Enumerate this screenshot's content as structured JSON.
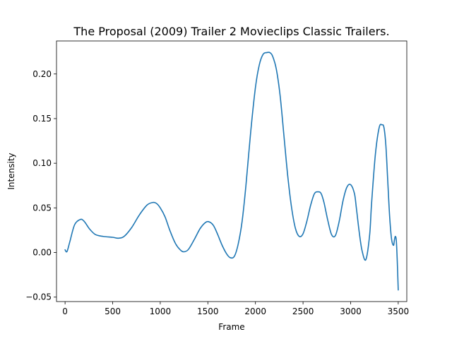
{
  "chart_data": {
    "type": "line",
    "title": "The Proposal (2009) Trailer 2  Movieclips Classic Trailers.",
    "xlabel": "Frame",
    "ylabel": "Intensity",
    "xlim": [
      -90,
      3590
    ],
    "ylim": [
      -0.055,
      0.237
    ],
    "xticks": [
      0,
      500,
      1000,
      1500,
      2000,
      2500,
      3000,
      3500
    ],
    "yticks": [
      -0.05,
      0.0,
      0.05,
      0.1,
      0.15,
      0.2
    ],
    "xtick_labels": [
      "0",
      "500",
      "1000",
      "1500",
      "2000",
      "2500",
      "3000",
      "3500"
    ],
    "ytick_labels": [
      "−0.05",
      "0.00",
      "0.05",
      "0.10",
      "0.15",
      "0.20"
    ],
    "grid": false,
    "series": [
      {
        "color": "#1f77b4",
        "x": [
          0,
          20,
          50,
          100,
          160,
          200,
          260,
          320,
          400,
          500,
          560,
          620,
          700,
          780,
          860,
          920,
          960,
          1000,
          1050,
          1100,
          1160,
          1220,
          1260,
          1300,
          1360,
          1420,
          1480,
          1520,
          1560,
          1600,
          1650,
          1700,
          1740,
          1780,
          1820,
          1860,
          1900,
          1950,
          2000,
          2040,
          2080,
          2120,
          2150,
          2180,
          2220,
          2260,
          2300,
          2340,
          2380,
          2420,
          2460,
          2500,
          2540,
          2580,
          2620,
          2660,
          2690,
          2720,
          2760,
          2800,
          2840,
          2880,
          2920,
          2960,
          3000,
          3040,
          3060,
          3090,
          3120,
          3160,
          3200,
          3220,
          3260,
          3300,
          3330,
          3350,
          3370,
          3390,
          3410,
          3430,
          3450,
          3460,
          3470,
          3480,
          3490,
          3500
        ],
        "y": [
          0.003,
          0.001,
          0.012,
          0.031,
          0.037,
          0.035,
          0.026,
          0.02,
          0.018,
          0.017,
          0.016,
          0.018,
          0.028,
          0.042,
          0.053,
          0.056,
          0.055,
          0.05,
          0.04,
          0.025,
          0.01,
          0.002,
          0.001,
          0.004,
          0.015,
          0.027,
          0.034,
          0.034,
          0.03,
          0.021,
          0.008,
          -0.002,
          -0.006,
          -0.004,
          0.01,
          0.035,
          0.075,
          0.135,
          0.185,
          0.21,
          0.222,
          0.224,
          0.224,
          0.22,
          0.205,
          0.175,
          0.13,
          0.085,
          0.05,
          0.027,
          0.018,
          0.021,
          0.035,
          0.053,
          0.066,
          0.068,
          0.066,
          0.056,
          0.036,
          0.02,
          0.019,
          0.035,
          0.058,
          0.073,
          0.076,
          0.066,
          0.05,
          0.023,
          0.002,
          -0.008,
          0.02,
          0.055,
          0.11,
          0.14,
          0.143,
          0.14,
          0.12,
          0.08,
          0.04,
          0.015,
          0.008,
          0.014,
          0.018,
          0.013,
          -0.01,
          -0.042
        ]
      }
    ]
  }
}
